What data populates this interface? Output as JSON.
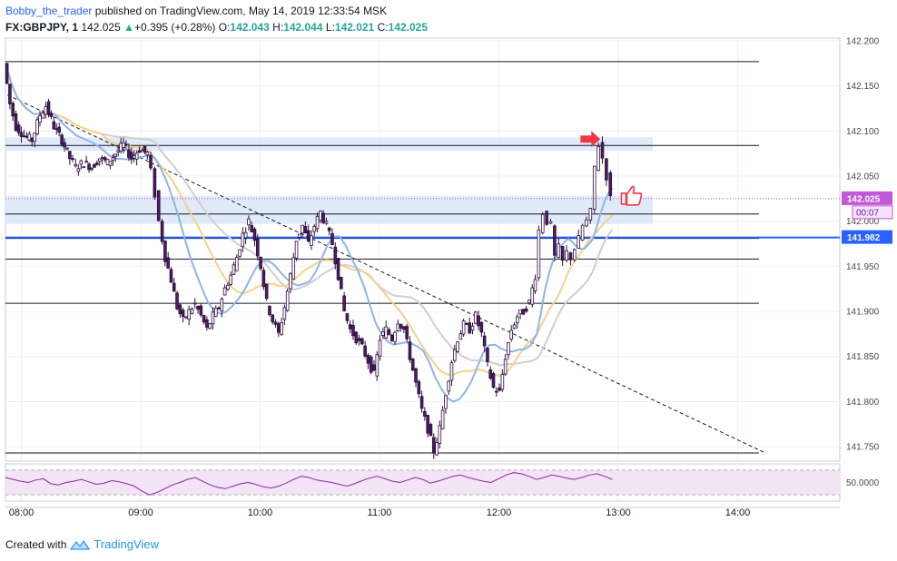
{
  "header": {
    "author": "Bobby_the_trader",
    "published": "published on TradingView.com, May 14, 2019 12:33:54 MSK",
    "symbol": "FX:GBPJPY, 1",
    "last": "142.025",
    "change_arrow": "▲",
    "change": "+0.395 (+0.28%)",
    "o_label": "O:",
    "o_value": "142.043",
    "h_label": "H:",
    "h_value": "142.044",
    "l_label": "L:",
    "l_value": "142.021",
    "c_label": "C:",
    "c_value": "142.025"
  },
  "footer": {
    "created_with": "Created with",
    "brand": "TradingView",
    "logo_icon": "tradingview-logo-icon"
  },
  "colors": {
    "candle_up": "#ffffff",
    "candle_down": "#4a1f5c",
    "candle_outline": "#2b0b3d",
    "zone_fill": "#dbe6f8",
    "sma_blue": "#90b4e8",
    "sma_orange": "#f4d28a",
    "sma_gray": "#cfcfcf",
    "price_badge": "#c158d8",
    "level_badge": "#2962ff",
    "arrow_red": "#f23645",
    "rsi_line": "#8e24aa",
    "rsi_band": "#f3e5f5"
  },
  "chart_data": {
    "type": "candlestick",
    "symbol": "FX:GBPJPY",
    "interval": "1",
    "x_ticks": [
      "08:00",
      "09:00",
      "10:00",
      "11:00",
      "12:00",
      "13:00",
      "14:00"
    ],
    "y_ticks": [
      "142.200",
      "142.150",
      "142.100",
      "142.050",
      "142.000",
      "141.950",
      "141.900",
      "141.850",
      "141.800",
      "141.750"
    ],
    "ylim": [
      141.734,
      142.203
    ],
    "time_minutes_start": "07:52",
    "close_path": [
      [
        "07:52",
        142.175
      ],
      [
        "07:55",
        142.13
      ],
      [
        "07:58",
        142.105
      ],
      [
        "08:02",
        142.095
      ],
      [
        "08:06",
        142.09
      ],
      [
        "08:10",
        142.118
      ],
      [
        "08:13",
        142.128
      ],
      [
        "08:17",
        142.105
      ],
      [
        "08:21",
        142.09
      ],
      [
        "08:25",
        142.07
      ],
      [
        "08:28",
        142.06
      ],
      [
        "08:32",
        142.065
      ],
      [
        "08:36",
        142.06
      ],
      [
        "08:40",
        142.07
      ],
      [
        "08:44",
        142.065
      ],
      [
        "08:48",
        142.075
      ],
      [
        "08:52",
        142.085
      ],
      [
        "08:56",
        142.07
      ],
      [
        "09:00",
        142.08
      ],
      [
        "09:04",
        142.075
      ],
      [
        "09:06",
        142.055
      ],
      [
        "09:08",
        142.03
      ],
      [
        "09:10",
        142.0
      ],
      [
        "09:13",
        141.96
      ],
      [
        "09:16",
        141.935
      ],
      [
        "09:19",
        141.905
      ],
      [
        "09:22",
        141.89
      ],
      [
        "09:25",
        141.9
      ],
      [
        "09:28",
        141.908
      ],
      [
        "09:31",
        141.895
      ],
      [
        "09:34",
        141.88
      ],
      [
        "09:37",
        141.895
      ],
      [
        "09:40",
        141.905
      ],
      [
        "09:43",
        141.925
      ],
      [
        "09:46",
        141.94
      ],
      [
        "09:49",
        141.96
      ],
      [
        "09:52",
        141.985
      ],
      [
        "09:55",
        142.0
      ],
      [
        "09:58",
        141.98
      ],
      [
        "10:01",
        141.95
      ],
      [
        "10:04",
        141.91
      ],
      [
        "10:07",
        141.89
      ],
      [
        "10:10",
        141.875
      ],
      [
        "10:13",
        141.905
      ],
      [
        "10:16",
        141.94
      ],
      [
        "10:19",
        141.98
      ],
      [
        "10:22",
        141.995
      ],
      [
        "10:25",
        141.975
      ],
      [
        "10:28",
        141.995
      ],
      [
        "10:31",
        142.01
      ],
      [
        "10:34",
        141.995
      ],
      [
        "10:37",
        141.975
      ],
      [
        "10:40",
        141.94
      ],
      [
        "10:43",
        141.9
      ],
      [
        "10:46",
        141.88
      ],
      [
        "10:49",
        141.87
      ],
      [
        "10:52",
        141.86
      ],
      [
        "10:55",
        141.845
      ],
      [
        "10:58",
        141.83
      ],
      [
        "11:01",
        141.87
      ],
      [
        "11:04",
        141.88
      ],
      [
        "11:07",
        141.87
      ],
      [
        "11:10",
        141.89
      ],
      [
        "11:13",
        141.88
      ],
      [
        "11:16",
        141.85
      ],
      [
        "11:19",
        141.82
      ],
      [
        "11:22",
        141.79
      ],
      [
        "11:25",
        141.77
      ],
      [
        "11:28",
        141.745
      ],
      [
        "11:31",
        141.77
      ],
      [
        "11:34",
        141.81
      ],
      [
        "11:37",
        141.845
      ],
      [
        "11:40",
        141.87
      ],
      [
        "11:43",
        141.885
      ],
      [
        "11:46",
        141.88
      ],
      [
        "11:49",
        141.895
      ],
      [
        "11:52",
        141.875
      ],
      [
        "11:55",
        141.84
      ],
      [
        "11:58",
        141.815
      ],
      [
        "12:01",
        141.81
      ],
      [
        "12:04",
        141.85
      ],
      [
        "12:07",
        141.88
      ],
      [
        "12:10",
        141.895
      ],
      [
        "12:13",
        141.9
      ],
      [
        "12:16",
        141.91
      ],
      [
        "12:19",
        141.94
      ],
      [
        "12:21",
        141.99
      ],
      [
        "12:23",
        142.01
      ],
      [
        "12:25",
        142.0
      ],
      [
        "12:27",
        141.995
      ],
      [
        "12:29",
        141.96
      ],
      [
        "12:31",
        141.97
      ],
      [
        "12:33",
        141.955
      ],
      [
        "12:35",
        141.965
      ],
      [
        "12:37",
        141.96
      ],
      [
        "12:39",
        141.97
      ],
      [
        "12:41",
        141.98
      ],
      [
        "12:43",
        141.995
      ],
      [
        "12:45",
        142.0
      ],
      [
        "12:47",
        142.01
      ],
      [
        "12:49",
        142.06
      ],
      [
        "12:51",
        142.085
      ],
      [
        "12:53",
        142.07
      ],
      [
        "12:55",
        142.05
      ],
      [
        "12:57",
        142.025
      ]
    ],
    "horizontal_levels": [
      142.177,
      142.084,
      142.008,
      141.981,
      141.958,
      141.909,
      141.743
    ],
    "zones": [
      {
        "from": 142.081,
        "to": 142.09
      },
      {
        "from": 142.0,
        "to": 142.025
      }
    ],
    "trendline": {
      "from": [
        "07:53",
        142.14
      ],
      "to": [
        "14:14",
        141.743
      ]
    },
    "last_price": "142.025",
    "countdown": "00:07",
    "level_label": "141.982",
    "rsi": {
      "label_level": "50.0000",
      "upper": 70,
      "lower": 30,
      "values": [
        58,
        55,
        52,
        50,
        54,
        56,
        48,
        46,
        50,
        52,
        55,
        51,
        47,
        49,
        53,
        51,
        48,
        44,
        36,
        30,
        34,
        40,
        46,
        50,
        55,
        58,
        52,
        46,
        42,
        40,
        44,
        48,
        50,
        47,
        43,
        41,
        44,
        49,
        55,
        60,
        58,
        54,
        52,
        50,
        47,
        44,
        48,
        53,
        57,
        60,
        56,
        52,
        50,
        54,
        58,
        55,
        49,
        52,
        56,
        60,
        62,
        58,
        55,
        52,
        50,
        56,
        62,
        66,
        64,
        60,
        55,
        58,
        62,
        60,
        57,
        55,
        58,
        62,
        64,
        60,
        55
      ]
    }
  }
}
